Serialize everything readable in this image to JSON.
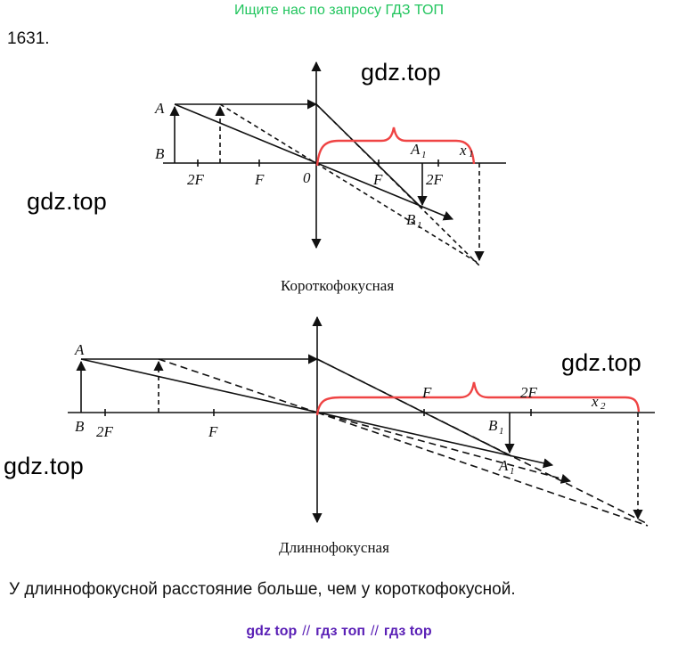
{
  "header": {
    "banner": "Ищите нас по запросу ГДЗ ТОП"
  },
  "problem": {
    "number": "1631."
  },
  "watermarks": [
    "gdz.top",
    "gdz.top",
    "gdz.top",
    "gdz.top"
  ],
  "diagram_top": {
    "caption": "Короткофокусная",
    "labels": {
      "A": "A",
      "B": "B",
      "two_f_left": "2F",
      "f_left": "F",
      "zero": "0",
      "f_right": "F",
      "two_f_right": "2F",
      "A1": "A",
      "A1_sub": "1",
      "B1": "B",
      "B1_sub": "1",
      "x": "x",
      "x_sub": "1"
    }
  },
  "diagram_bottom": {
    "caption": "Длиннофокусная",
    "labels": {
      "A": "A",
      "B": "B",
      "two_f_left": "2F",
      "f_left": "F",
      "f_right": "F",
      "two_f_right": "2F",
      "B1": "B",
      "B1_sub": "1",
      "A1": "A",
      "A1_sub": "1",
      "x": "x",
      "x_sub": "2"
    }
  },
  "answer": {
    "text": "У длиннофокусной расстояние больше, чем у короткофокусной."
  },
  "footer": {
    "link1": "gdz top",
    "sep1": "//",
    "link2": "гдз топ",
    "sep2": "//",
    "link3": "гдз top"
  },
  "colors": {
    "banner": "#22c55e",
    "brace": "#ef4444",
    "footer": "#5b21b6",
    "lines": "#111111"
  }
}
